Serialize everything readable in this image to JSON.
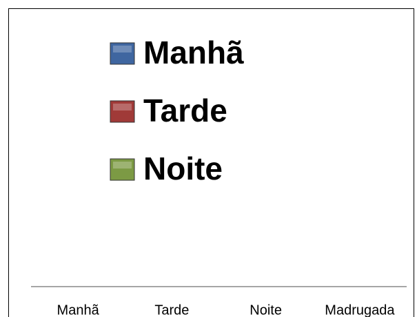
{
  "chart_data": {
    "type": "bar",
    "categories": [
      "Manhã",
      "Tarde",
      "Noite",
      "Madrugada"
    ],
    "series": [
      {
        "name": "Manhã",
        "color": "#3f66a0"
      },
      {
        "name": "Tarde",
        "color": "#a03a38"
      },
      {
        "name": "Noite",
        "color": "#7c9a44"
      }
    ]
  }
}
